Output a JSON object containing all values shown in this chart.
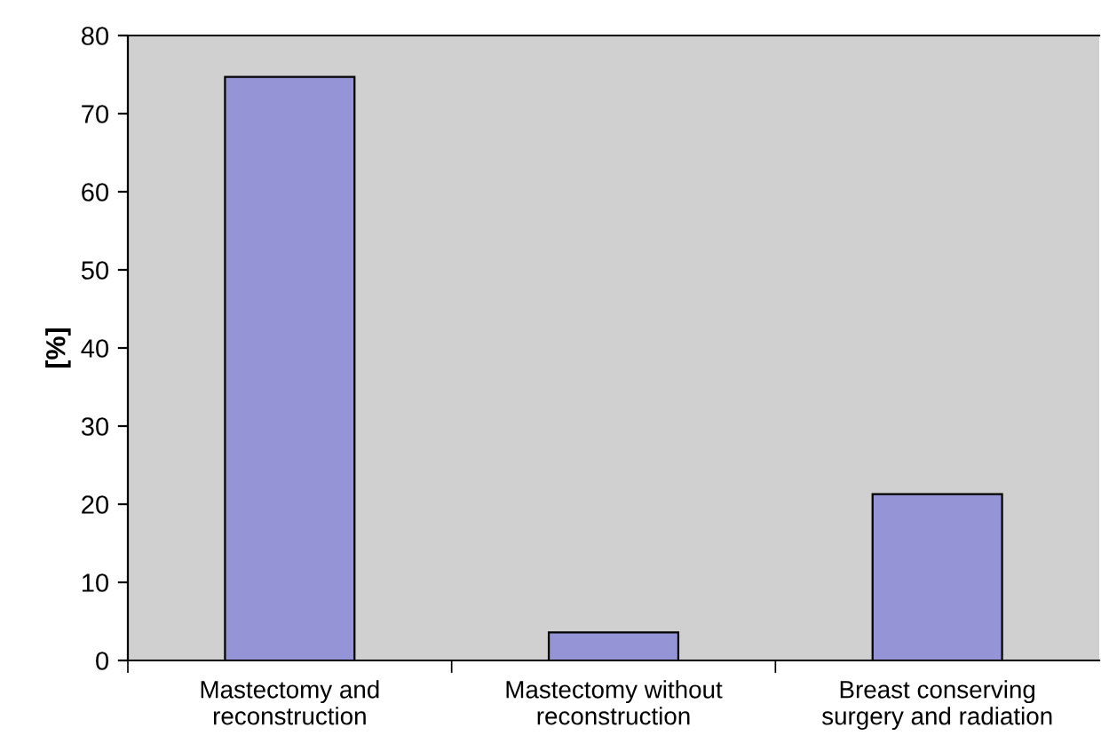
{
  "chart_data": {
    "type": "bar",
    "ylabel": "[%]",
    "categories": [
      "Mastectomy and\nreconstruction",
      "Mastectomy without\nreconstruction",
      "Breast conserving\nsurgery and radiation"
    ],
    "values": [
      74.7,
      3.6,
      21.3
    ],
    "color": "#9494d6",
    "ylim": [
      0,
      80
    ],
    "yticks": [
      0,
      10,
      20,
      30,
      40,
      50,
      60,
      70,
      80
    ],
    "grid": false,
    "legend": false
  }
}
